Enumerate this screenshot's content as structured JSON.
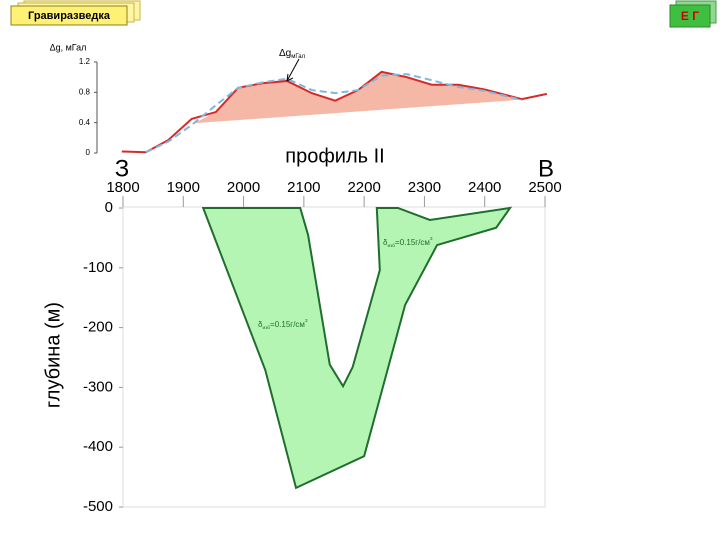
{
  "header": {
    "button": "Гравиразведка",
    "corner": "Е Г"
  },
  "chart_data": [
    {
      "type": "line",
      "y_label": "Δg, мГал",
      "annotation": {
        "symbol": "Δg",
        "sub": "мГал"
      },
      "xlim": [
        1800,
        2500
      ],
      "ylim": [
        0,
        1.2
      ],
      "yticks": [
        0,
        0.4,
        0.8,
        1.2
      ],
      "series": [
        {
          "color": "#d62a2a",
          "style": "solid",
          "x": [
            1798,
            1838,
            1875,
            1914,
            1954,
            1991,
            2031,
            2072,
            2113,
            2152,
            2190,
            2229,
            2271,
            2312,
            2356,
            2399,
            2462,
            2503
          ],
          "values": [
            0.02,
            0.01,
            0.17,
            0.45,
            0.54,
            0.86,
            0.92,
            0.95,
            0.79,
            0.69,
            0.83,
            1.07,
            1.0,
            0.9,
            0.9,
            0.84,
            0.71,
            0.78
          ]
        },
        {
          "color": "#7fb8d8",
          "style": "dashed",
          "x": [
            1838,
            1875,
            1914,
            1954,
            1991,
            2031,
            2072,
            2113,
            2152,
            2190,
            2229,
            2271,
            2312,
            2356,
            2399,
            2462
          ],
          "values": [
            0.01,
            0.15,
            0.37,
            0.63,
            0.86,
            0.93,
            0.98,
            0.83,
            0.79,
            0.83,
            1.02,
            1.04,
            0.96,
            0.87,
            0.82,
            0.7
          ]
        }
      ],
      "anomaly_base": {
        "x": [
          1920,
          2462
        ],
        "values": [
          0.4,
          0.71
        ],
        "color": "#f5b8a6"
      }
    },
    {
      "type": "polygon",
      "title": "профиль II",
      "left_label": "З",
      "right_label": "В",
      "y_label": "глубина (м)",
      "xlim": [
        1800,
        2500
      ],
      "xticks": [
        1800,
        1900,
        2000,
        2100,
        2200,
        2300,
        2400,
        2500
      ],
      "ylim": [
        -500,
        0
      ],
      "yticks": [
        0,
        -100,
        -200,
        -300,
        -400,
        -500
      ],
      "body": {
        "color": "#b4f5b4",
        "edge": "#1f6e2e",
        "x": [
          1933,
          2094,
          2107,
          2143,
          2165,
          2181,
          2226,
          2221,
          2256,
          2309,
          2442,
          2419,
          2321,
          2268,
          2200,
          2087,
          2036
        ],
        "depth": [
          0,
          0,
          -45,
          -262,
          -298,
          -266,
          -104,
          0,
          0,
          -20,
          0,
          -33,
          -62,
          -162,
          -415,
          -468,
          -271
        ]
      },
      "annotations": [
        {
          "symbol": "δ",
          "sub": "изб",
          "text": "=0.15г/см",
          "sup": "3"
        },
        {
          "symbol": "δ",
          "sub": "изб",
          "text": "=0.15г/см",
          "sup": "3"
        }
      ]
    }
  ]
}
